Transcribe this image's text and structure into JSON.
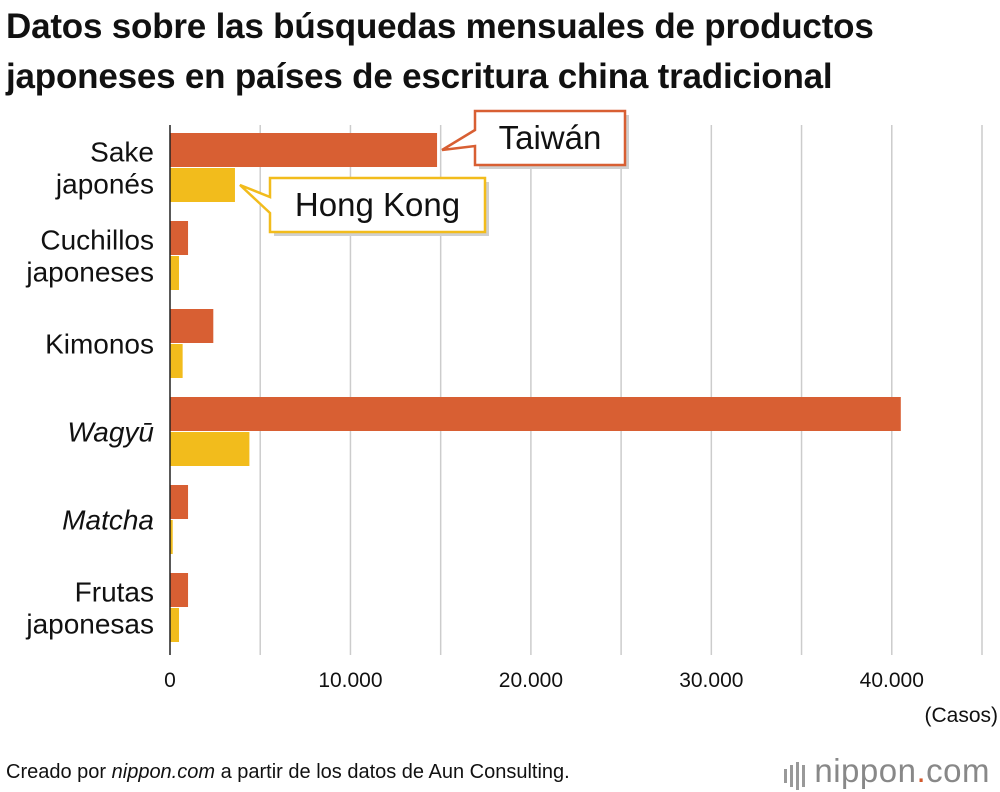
{
  "title": "Datos sobre las búsquedas mensuales de productos japoneses en países de escritura china tradicional",
  "footer": {
    "prefix": "Creado por ",
    "source_italic": "nippon.com",
    "suffix": " a partir de los datos de Aun Consulting."
  },
  "logo": {
    "left": "nippon",
    "dot": ".",
    "right": "com"
  },
  "chart_data": {
    "type": "bar",
    "orientation": "horizontal",
    "categories": [
      {
        "lines": [
          "Sake",
          "japonés"
        ],
        "italic": false
      },
      {
        "lines": [
          "Cuchillos",
          "japoneses"
        ],
        "italic": false
      },
      {
        "lines": [
          "Kimonos"
        ],
        "italic": false
      },
      {
        "lines": [
          "Wagyū"
        ],
        "italic": true
      },
      {
        "lines": [
          "Matcha"
        ],
        "italic": true
      },
      {
        "lines": [
          "Frutas",
          "japonesas"
        ],
        "italic": false
      }
    ],
    "series": [
      {
        "name": "Taiwán",
        "color": "#d85f33",
        "values": [
          14800,
          1000,
          2400,
          40500,
          1000,
          1000
        ]
      },
      {
        "name": "Hong Kong",
        "color": "#f2bc1c",
        "values": [
          3600,
          500,
          700,
          4400,
          150,
          500
        ]
      }
    ],
    "xlim": [
      0,
      45000
    ],
    "xticks": [
      0,
      10000,
      20000,
      30000,
      40000
    ],
    "xtick_labels": [
      "0",
      "10.000",
      "20.000",
      "30.000",
      "40.000"
    ],
    "xunit": "(Casos)",
    "grid": true,
    "minor_grid_step": 5000,
    "legend": "callouts on first category bars"
  }
}
